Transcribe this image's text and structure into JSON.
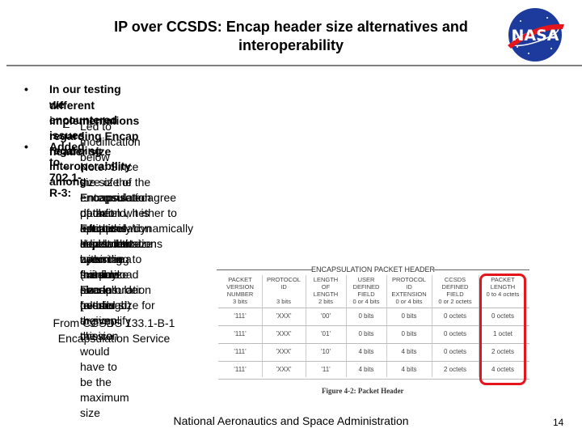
{
  "slide": {
    "title_line1": "IP over CCSDS: Encap header size alternatives and",
    "title_line2": "interoperability",
    "logo_text": "NASA",
    "bullets": {
      "b1_line1": "In our testing we encountered issues regarding interoperability among",
      "b1_line2": "different implementations regarding Encap header size",
      "b1_sub": "Led to modification below",
      "b2": "Added to 702.1-R-3:",
      "b2_sub_lines": [
        "Note: Since the size of the Encapsulation packet header is dependent upon the",
        "size of the encapsulated data field, it is left to the implementations within an",
        "Enterprise to agree upon on whether to adaptively/dynamically adjust the size",
        "of the Encapsulation Header size according to the payload size in order to",
        "optimize bandwidth use (minimize header overhead) or simplify the",
        "implementation by using a fixed Encapsulation header size for a given mission",
        "or mission phase (although the choice would have to be the maximum size",
        "suitable over all possibl"
      ]
    },
    "caption_line1": "From CCSDS 133.1-B-1",
    "caption_line2": "Encapsulation Service",
    "footer": "National Aeronautics and Space Administration",
    "page_number": "14",
    "accent_color": "#e4161b"
  },
  "figure": {
    "title": "ENCAPSULATION PACKET HEADER",
    "caption": "Figure 4-2:  Packet Header",
    "columns": [
      {
        "l1": "PACKET",
        "l2": "VERSION",
        "l3": "NUMBER",
        "l4": "3 bits"
      },
      {
        "l1": "PROTOCOL",
        "l2": "ID",
        "l3": "",
        "l4": "3 bits"
      },
      {
        "l1": "LENGTH",
        "l2": "OF",
        "l3": "LENGTH",
        "l4": "2 bits"
      },
      {
        "l1": "USER",
        "l2": "DEFINED",
        "l3": "FIELD",
        "l4": "0 or 4 bits"
      },
      {
        "l1": "PROTOCOL",
        "l2": "ID",
        "l3": "EXTENSION",
        "l4": "0 or 4 bits"
      },
      {
        "l1": "CCSDS",
        "l2": "DEFINED",
        "l3": "FIELD",
        "l4": "0 or 2 octets"
      },
      {
        "l1": "PACKET",
        "l2": "LENGTH",
        "l3": "0 to 4 octets",
        "l4": ""
      }
    ],
    "rows": [
      [
        "'111'",
        "'XXX'",
        "'00'",
        "0 bits",
        "0 bits",
        "0 octets",
        "0 octets"
      ],
      [
        "'111'",
        "'XXX'",
        "'01'",
        "0 bits",
        "0 bits",
        "0 octets",
        "1 octet"
      ],
      [
        "'111'",
        "'XXX'",
        "'10'",
        "4 bits",
        "4 bits",
        "0 octets",
        "2 octets"
      ],
      [
        "'111'",
        "'XXX'",
        "'11'",
        "4 bits",
        "4 bits",
        "2 octets",
        "4 octets"
      ]
    ]
  }
}
